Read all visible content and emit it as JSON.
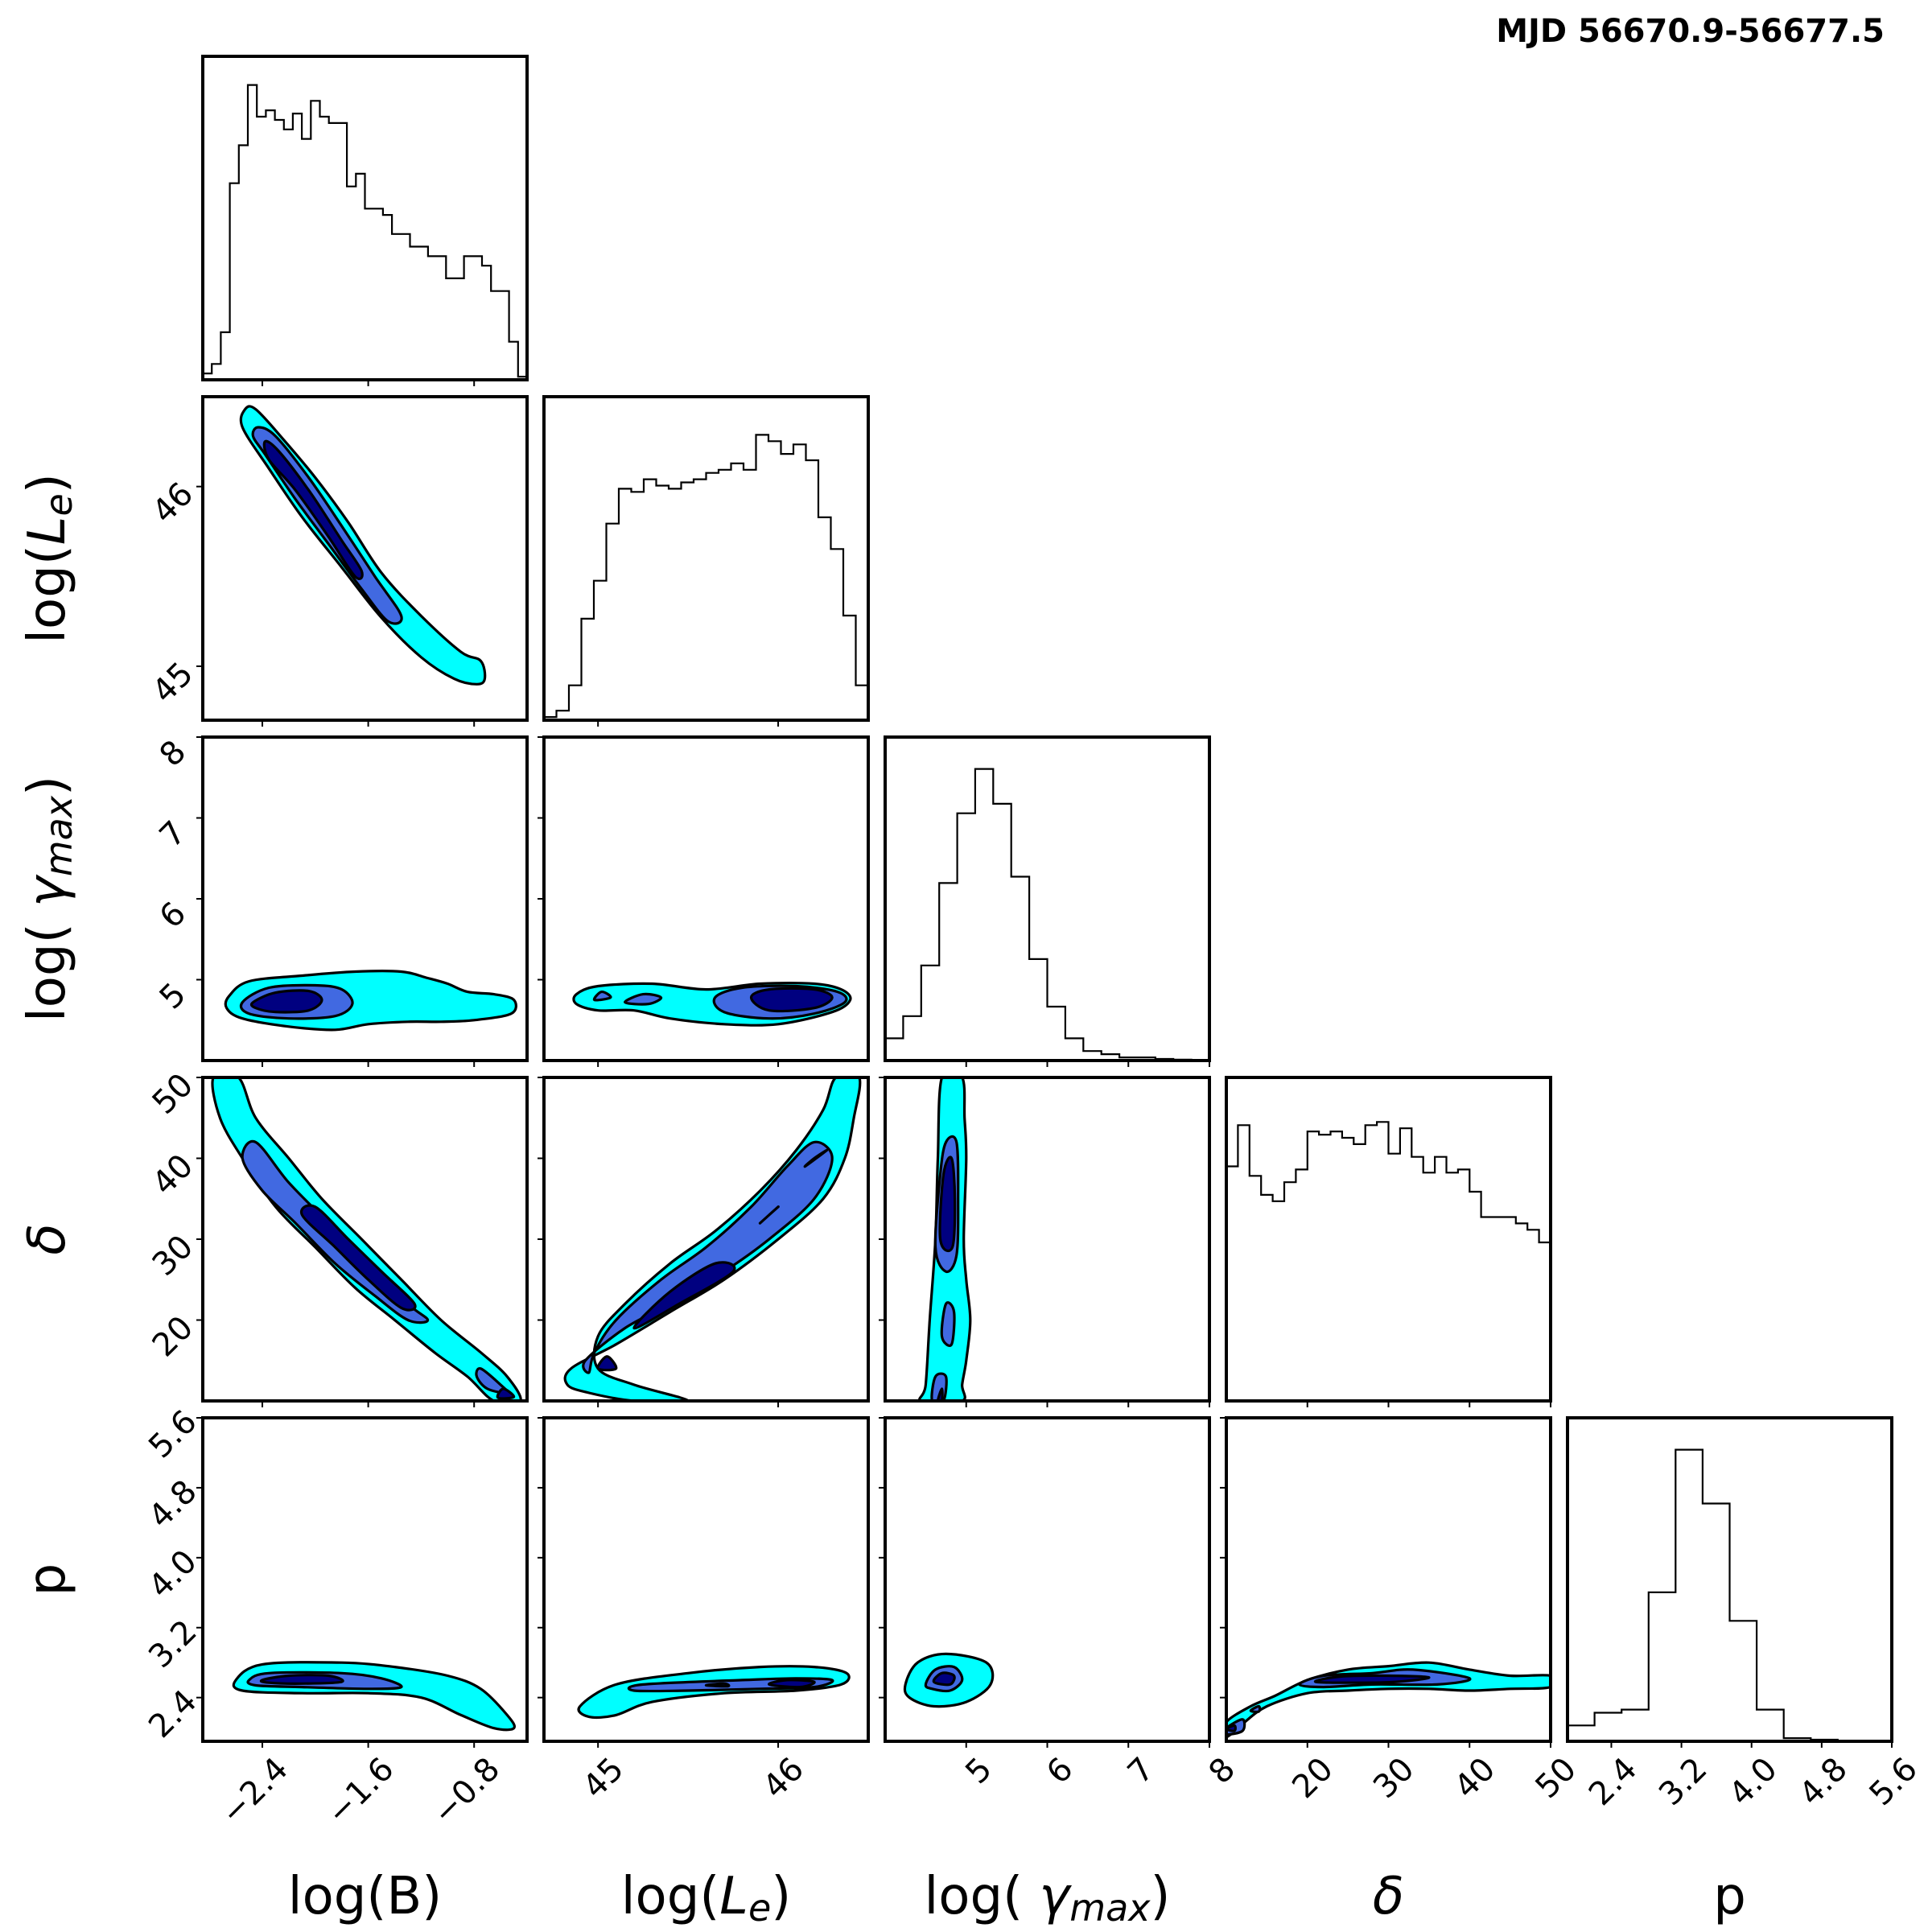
{
  "title": "MJD 56670.9-56677.5",
  "colors": {
    "level1": "#00ffff",
    "level2": "#4169e1",
    "level3": "#000080",
    "line": "#000000"
  },
  "chart_data": {
    "type": "corner",
    "title": "MJD 56670.9-56677.5",
    "parameters": [
      {
        "key": "B",
        "label_main": "log(B)",
        "label_sub": "",
        "label_suffix": "",
        "range": [
          -2.85,
          -0.4
        ],
        "ticks": [
          -2.4,
          -1.6,
          -0.8
        ],
        "tick_labels": [
          "−2.4",
          "−1.6",
          "−0.8"
        ]
      },
      {
        "key": "Le",
        "label_main": "log(",
        "label_sym": "L",
        "label_sub": "e",
        "label_suffix": ")",
        "range": [
          44.7,
          46.5
        ],
        "ticks": [
          45,
          46
        ],
        "tick_labels": [
          "45",
          "46"
        ]
      },
      {
        "key": "gmax",
        "label_main": "log( ",
        "label_sym": "γ",
        "label_sub": "max",
        "label_suffix": ")",
        "range": [
          4.0,
          8.0
        ],
        "ticks": [
          5,
          6,
          7,
          8
        ],
        "tick_labels": [
          "5",
          "6",
          "7",
          "8"
        ]
      },
      {
        "key": "delta",
        "label_main": "",
        "label_sym": "δ",
        "label_sub": "",
        "label_suffix": "",
        "range": [
          10,
          50
        ],
        "ticks": [
          20,
          30,
          40,
          50
        ],
        "tick_labels": [
          "20",
          "30",
          "40",
          "50"
        ]
      },
      {
        "key": "p",
        "label_main": "p",
        "label_sym": "",
        "label_sub": "",
        "label_suffix": "",
        "range": [
          1.9,
          5.6
        ],
        "ticks": [
          2.4,
          3.2,
          4.0,
          4.8,
          5.6
        ],
        "tick_labels": [
          "2.4",
          "3.2",
          "4.0",
          "4.8",
          "5.6"
        ]
      }
    ],
    "histograms": {
      "B": [
        0.02,
        0.05,
        0.15,
        0.62,
        0.74,
        0.93,
        0.83,
        0.85,
        0.82,
        0.79,
        0.84,
        0.76,
        0.88,
        0.83,
        0.81,
        0.81,
        0.61,
        0.65,
        0.54,
        0.54,
        0.52,
        0.46,
        0.46,
        0.42,
        0.42,
        0.39,
        0.39,
        0.32,
        0.32,
        0.39,
        0.39,
        0.36,
        0.28,
        0.28,
        0.12,
        0.01
      ],
      "Le": [
        0.01,
        0.03,
        0.11,
        0.32,
        0.44,
        0.62,
        0.73,
        0.72,
        0.76,
        0.74,
        0.73,
        0.75,
        0.76,
        0.78,
        0.79,
        0.81,
        0.79,
        0.9,
        0.88,
        0.84,
        0.87,
        0.82,
        0.64,
        0.54,
        0.33,
        0.11
      ],
      "gmax": [
        0.07,
        0.14,
        0.3,
        0.56,
        0.78,
        0.92,
        0.81,
        0.58,
        0.32,
        0.17,
        0.07,
        0.03,
        0.02,
        0.01,
        0.01,
        0.005,
        0.003,
        0.002
      ],
      "delta": [
        0.74,
        0.87,
        0.71,
        0.65,
        0.63,
        0.69,
        0.73,
        0.85,
        0.84,
        0.85,
        0.83,
        0.81,
        0.87,
        0.88,
        0.78,
        0.86,
        0.77,
        0.72,
        0.77,
        0.72,
        0.73,
        0.66,
        0.58,
        0.58,
        0.58,
        0.56,
        0.54,
        0.5
      ],
      "p": [
        0.05,
        0.09,
        0.1,
        0.47,
        0.92,
        0.75,
        0.38,
        0.1,
        0.01,
        0.005,
        0.002,
        0.001
      ]
    },
    "credible_contours": {
      "levels": [
        "outer (cyan)",
        "middle (royal blue)",
        "inner (navy)"
      ],
      "note": "2D marginal density regions shown as filled contours; shapes approximated from image"
    },
    "grid": false
  }
}
